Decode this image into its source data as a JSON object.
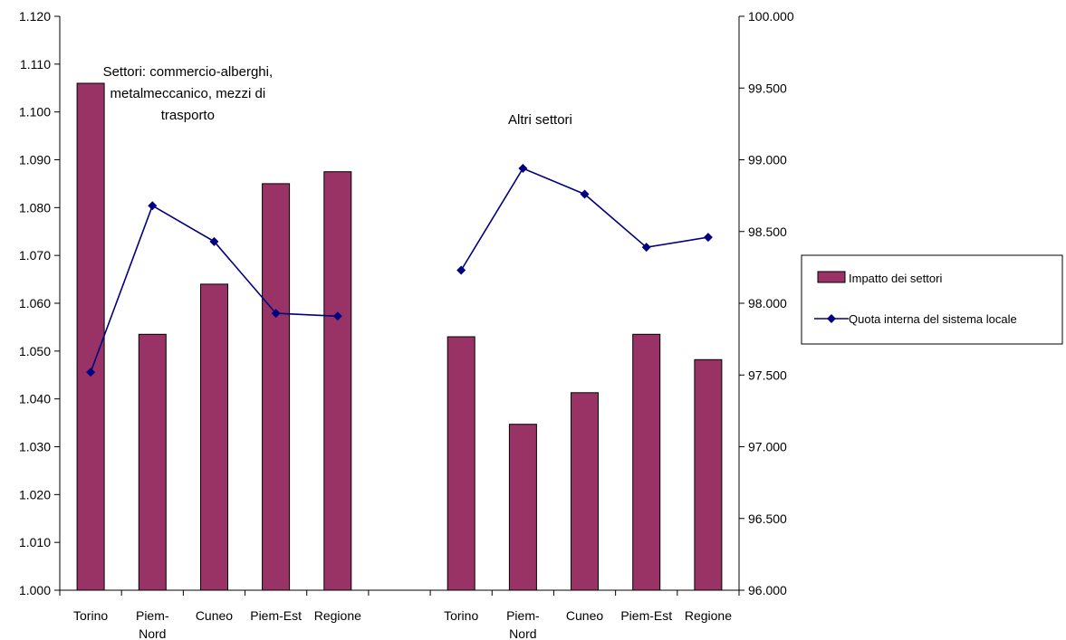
{
  "chart_data": {
    "type": "bar",
    "categories": [
      "Torino",
      "Piem-Nord",
      "Cuneo",
      "Piem-Est",
      "Regione",
      "",
      "Torino",
      "Piem-Nord",
      "Cuneo",
      "Piem-Est",
      "Regione"
    ],
    "series": [
      {
        "name": "Impatto dei settori",
        "kind": "bar",
        "axis": "left",
        "color": "#993366",
        "values": [
          1.106,
          1.0535,
          1.064,
          1.085,
          1.0875,
          null,
          1.053,
          1.0347,
          1.0413,
          1.0535,
          1.0482
        ]
      },
      {
        "name": "Quota interna del sistema locale",
        "kind": "line",
        "axis": "right",
        "color": "#000080",
        "values": [
          97.52,
          98.68,
          98.43,
          97.93,
          97.91,
          null,
          98.23,
          98.94,
          98.76,
          98.39,
          98.46
        ]
      }
    ],
    "left_axis": {
      "ylim": [
        1.0,
        1.12
      ],
      "ticks": [
        "1.000",
        "1.010",
        "1.020",
        "1.030",
        "1.040",
        "1.050",
        "1.060",
        "1.070",
        "1.080",
        "1.090",
        "1.100",
        "1.110",
        "1.120"
      ]
    },
    "right_axis": {
      "ylim": [
        96.0,
        100.0
      ],
      "ticks": [
        "96.000",
        "96.500",
        "97.000",
        "97.500",
        "98.000",
        "98.500",
        "99.000",
        "99.500",
        "100.000"
      ]
    },
    "annotations": [
      {
        "lines": [
          "Settori: commercio-alberghi,",
          "metalmeccanico, mezzi di",
          "trasporto"
        ]
      },
      {
        "lines": [
          "Altri settori"
        ]
      }
    ],
    "legend": {
      "position": "right",
      "entries": [
        "Impatto dei settori",
        "Quota interna del sistema locale"
      ]
    },
    "grid": false
  }
}
